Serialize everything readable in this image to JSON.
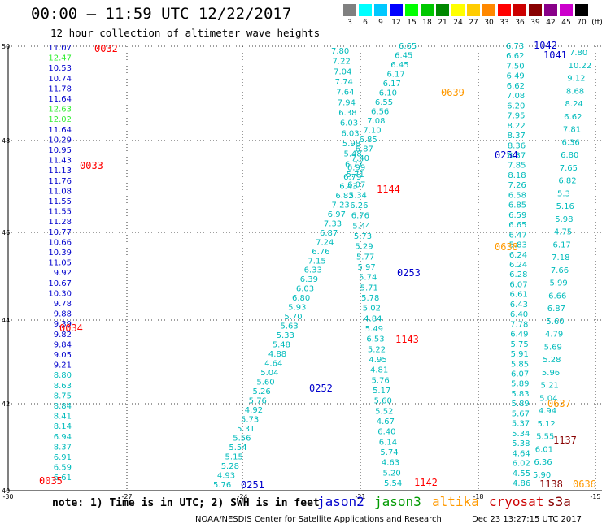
{
  "header": {
    "title": "00:00 – 11:59 UTC 12/22/2017",
    "subtitle": "12 hour collection of altimeter wave heights"
  },
  "colorbar": {
    "labels": [
      "3",
      "6",
      "9",
      "12",
      "15",
      "18",
      "21",
      "24",
      "27",
      "30",
      "33",
      "36",
      "39",
      "42",
      "45",
      "70",
      "(ft)"
    ],
    "colors": [
      "#808080",
      "#00ffff",
      "#00c8ff",
      "#0000ff",
      "#00ff00",
      "#00c800",
      "#008800",
      "#ffff00",
      "#ffcc00",
      "#ff8800",
      "#ff0000",
      "#cc0000",
      "#880000",
      "#880088",
      "#cc00cc",
      "#000000"
    ]
  },
  "axes": {
    "lon_ticks": [
      "-30",
      "-27",
      "-24",
      "-21",
      "-18",
      "-15"
    ],
    "lat_ticks": [
      "50",
      "48",
      "46",
      "44",
      "42",
      "40"
    ]
  },
  "passes": [
    {
      "time": "0032",
      "color": "#ff0000"
    },
    {
      "time": "0033",
      "color": "#ff0000"
    },
    {
      "time": "0034",
      "color": "#ff0000"
    },
    {
      "time": "0035",
      "color": "#ff0000"
    },
    {
      "time": "1144",
      "color": "#ff0000"
    },
    {
      "time": "1143",
      "color": "#ff0000"
    },
    {
      "time": "1142",
      "color": "#ff0000"
    },
    {
      "time": "0639",
      "color": "#ff9900"
    },
    {
      "time": "0638",
      "color": "#ff9900"
    },
    {
      "time": "0637",
      "color": "#ff9900"
    },
    {
      "time": "0636",
      "color": "#ff9900"
    },
    {
      "time": "1042",
      "color": "#0000cc"
    },
    {
      "time": "1041",
      "color": "#0000cc"
    },
    {
      "time": "0254",
      "color": "#0000cc"
    },
    {
      "time": "0253",
      "color": "#0000cc"
    },
    {
      "time": "0252",
      "color": "#0000cc"
    },
    {
      "time": "0251",
      "color": "#0000cc"
    },
    {
      "time": "1137",
      "color": "#880000"
    },
    {
      "time": "1138",
      "color": "#880000"
    }
  ],
  "values": {
    "left": [
      "11.07",
      "12.47",
      "10.53",
      "10.74",
      "11.78",
      "11.64",
      "12.63",
      "12.02",
      "11.64",
      "10.29",
      "10.95",
      "11.43",
      "11.13",
      "11.76",
      "11.08",
      "11.55",
      "11.55",
      "11.28",
      "10.77",
      "10.66",
      "10.39",
      "11.05",
      "9.92",
      "10.67",
      "10.30",
      "9.78",
      "9.88",
      "9.39",
      "9.82",
      "9.84",
      "9.05",
      "9.21",
      "8.80",
      "8.63",
      "8.75",
      "8.84",
      "8.41",
      "8.14",
      "6.94",
      "8.37",
      "6.91",
      "6.59",
      "6.61"
    ],
    "left_colors": [
      "b",
      "g",
      "b",
      "b",
      "b",
      "b",
      "g",
      "g",
      "b",
      "b",
      "b",
      "b",
      "b",
      "b",
      "b",
      "b",
      "b",
      "b",
      "b",
      "b",
      "b",
      "b",
      "b",
      "b",
      "b",
      "b",
      "b",
      "b",
      "b",
      "b",
      "b",
      "b",
      "c",
      "c",
      "c",
      "c",
      "c",
      "c",
      "c",
      "c",
      "c",
      "c",
      "c"
    ],
    "track_a": [
      "7.80",
      "7.22",
      "7.04",
      "7.74",
      "7.64",
      "7.94",
      "6.38",
      "6.03",
      "6.03",
      "5.98",
      "5.48",
      "6.77",
      "5.71",
      "6.07",
      "5.34",
      "6.26",
      "6.76",
      "5.44",
      "5.73",
      "5.29",
      "5.77",
      "5.97",
      "5.74",
      "5.71",
      "5.78",
      "5.02",
      "4.84",
      "5.49",
      "6.53",
      "5.22",
      "4.95",
      "4.81",
      "5.76",
      "5.17",
      "5.60",
      "5.52",
      "4.67",
      "6.40",
      "6.14",
      "5.74",
      "4.63",
      "5.20",
      "5.54"
    ],
    "track_b": [
      "6.65",
      "6.45",
      "6.45",
      "6.17",
      "6.17",
      "6.10",
      "6.55",
      "6.56",
      "7.08",
      "7.10",
      "6.85",
      "6.87",
      "7.40",
      "6.99",
      "6.79",
      "6.43",
      "6.82",
      "7.23",
      "6.97",
      "7.33",
      "6.87",
      "7.24",
      "6.76",
      "7.15",
      "6.33",
      "6.39",
      "6.03",
      "6.80",
      "5.93",
      "5.70",
      "5.63",
      "5.33",
      "5.48",
      "4.88",
      "4.64",
      "5.04",
      "5.60",
      "5.26",
      "5.76",
      "4.92",
      "5.73",
      "5.31",
      "5.56",
      "5.54",
      "5.15",
      "5.28",
      "4.93",
      "5.76"
    ],
    "track_c": [
      "6.73",
      "6.62",
      "7.50",
      "6.49",
      "6.62",
      "7.08",
      "6.20",
      "7.95",
      "8.22",
      "8.37",
      "8.36",
      "8.37",
      "7.85",
      "8.18",
      "7.26",
      "6.58",
      "6.85",
      "6.59",
      "6.65",
      "6.47",
      "5.83",
      "6.24",
      "6.24",
      "6.28",
      "6.07",
      "6.61",
      "6.43",
      "6.40",
      "7.78",
      "6.49",
      "5.75",
      "5.91",
      "5.85",
      "6.07",
      "5.89",
      "5.83",
      "5.89",
      "5.67",
      "5.37",
      "5.34",
      "5.38",
      "4.64",
      "6.02",
      "4.55",
      "4.86"
    ],
    "track_d": [
      "7.80",
      "10.22",
      "9.12",
      "8.68",
      "8.24",
      "6.62",
      "7.81",
      "6.36",
      "6.80",
      "7.65",
      "6.82",
      "5.3",
      "5.16",
      "5.98",
      "4.75",
      "6.17",
      "7.18",
      "7.66",
      "5.99",
      "6.66",
      "6.87",
      "5.60",
      "4.79",
      "5.69",
      "5.28",
      "5.96",
      "5.21",
      "5.04",
      "4.94",
      "5.12",
      "5.55",
      "6.01",
      "6.36",
      "5.90"
    ]
  },
  "footer": {
    "note": "note:  1) Time is in UTC;  2) SWH is in feet",
    "sats": [
      {
        "name": "jason2",
        "color": "#0000cc"
      },
      {
        "name": "jason3",
        "color": "#009900"
      },
      {
        "name": "altika",
        "color": "#ff9900"
      },
      {
        "name": "cryosat",
        "color": "#cc0000"
      },
      {
        "name": "s3a",
        "color": "#880000"
      }
    ],
    "credit": "NOAA/NESDIS Center for Satellite Applications and Research",
    "timestamp": "Dec 23 13:27:15 UTC 2017"
  }
}
